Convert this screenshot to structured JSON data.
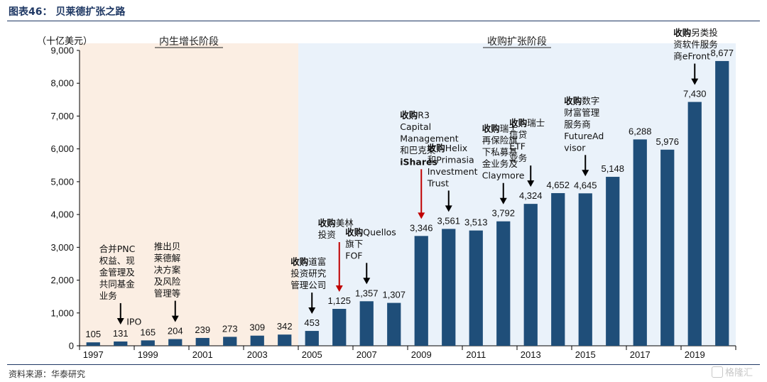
{
  "figure": {
    "title": "图表46：  贝莱德扩张之路",
    "source": "资料来源：华泰研究",
    "watermark": "格隆汇"
  },
  "colors": {
    "bar": "#1f4e79",
    "band_growth": "#fbeee3",
    "band_expansion": "#eaf2fa",
    "arrow_red": "#c00000",
    "arrow_black": "#000000",
    "title_blue": "#1f3864"
  },
  "chart_data": {
    "type": "bar",
    "unit_label": "（十亿美元）",
    "categories": [
      "1997",
      "1998",
      "1999",
      "2000",
      "2001",
      "2002",
      "2003",
      "2004",
      "2005",
      "2006",
      "2007",
      "2008",
      "2009",
      "2010",
      "2011",
      "2012",
      "2013",
      "2014",
      "2015",
      "2016",
      "2017",
      "2018",
      "2019",
      "2020"
    ],
    "x_tick_labels": [
      "1997",
      "1999",
      "2001",
      "2003",
      "2005",
      "2007",
      "2009",
      "2011",
      "2013",
      "2015",
      "2017",
      "2019"
    ],
    "values": [
      105,
      131,
      165,
      204,
      239,
      273,
      309,
      342,
      453,
      1125,
      1357,
      1307,
      3346,
      3561,
      3513,
      3792,
      4324,
      4652,
      4645,
      5148,
      6288,
      5976,
      7430,
      8677
    ],
    "value_labels": [
      "105",
      "131",
      "165",
      "204",
      "239",
      "273",
      "309",
      "342",
      "453",
      "1,125",
      "1,357",
      "1,307",
      "3,346",
      "3,561",
      "3,513",
      "3,792",
      "4,324",
      "4,652",
      "4,645",
      "5,148",
      "6,288",
      "5,976",
      "7,430",
      "8,677"
    ],
    "ylim": [
      0,
      9000
    ],
    "y_ticks": [
      0,
      1000,
      2000,
      3000,
      4000,
      5000,
      6000,
      7000,
      8000,
      9000
    ],
    "y_tick_labels": [
      "0",
      "1,000",
      "2,000",
      "3,000",
      "4,000",
      "5,000",
      "6,000",
      "7,000",
      "8,000",
      "9,000"
    ],
    "periods": [
      {
        "label": "内生增长阶段",
        "from": "1997",
        "to": "2004"
      },
      {
        "label": "收购扩张阶段",
        "from": "2005",
        "to": "2020"
      }
    ],
    "annotations": [
      {
        "year": "1998",
        "arrow": "black",
        "bold": "",
        "rest": [
          "合并PNC",
          "权益、现",
          "金管理及",
          "共同基金",
          "业务"
        ]
      },
      {
        "year": "1999",
        "arrow": "none",
        "bold": "",
        "rest": [
          "IPO"
        ]
      },
      {
        "year": "2000",
        "arrow": "black",
        "bold": "",
        "rest": [
          "推出贝",
          "莱德解",
          "决方案",
          "及风险",
          "管理等"
        ]
      },
      {
        "year": "2005",
        "arrow": "black",
        "bold": "收购",
        "rest": [
          "道富",
          "投资研究",
          "管理公司"
        ]
      },
      {
        "year": "2006",
        "arrow": "red",
        "bold": "收购",
        "rest": [
          "美林",
          "投资"
        ]
      },
      {
        "year": "2007",
        "arrow": "black",
        "bold": "收购",
        "rest": [
          "Quellos",
          "旗下",
          "FOF"
        ]
      },
      {
        "year": "2009",
        "arrow": "red",
        "bold": "收购",
        "rest": [
          "R3",
          "Capital",
          "Management",
          "和巴克莱"
        ],
        "bold_tail": "iShares"
      },
      {
        "year": "2010",
        "arrow": "black",
        "bold": "收购",
        "rest": [
          "Helix",
          "和Primasia",
          "Investment",
          "Trust"
        ]
      },
      {
        "year": "2012",
        "arrow": "black",
        "bold": "收购",
        "rest": [
          "瑞士",
          "再保险旗",
          "下私募基",
          "金业务及",
          "Claymore"
        ]
      },
      {
        "year": "2013",
        "arrow": "black",
        "bold": "收购",
        "rest": [
          "瑞士",
          "信贷",
          "ETF",
          "业务"
        ]
      },
      {
        "year": "2015",
        "arrow": "black",
        "bold": "收购",
        "rest": [
          "数字",
          "财富管理",
          "服务商",
          "FutureAd",
          "visor"
        ]
      },
      {
        "year": "2019",
        "arrow": "black",
        "bold": "收购",
        "rest": [
          "另类投",
          "资软件服务",
          "商eFront"
        ]
      }
    ]
  }
}
